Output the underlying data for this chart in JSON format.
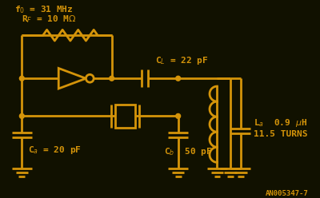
{
  "bg_color": "#111100",
  "line_color": "#d4940a",
  "text_color": "#d4940a",
  "lw": 2.0,
  "f0_label": "f₀ = 31 MHz",
  "rf_label": "Rⁱ = 10 MΩ",
  "cl_label": "Cₗ = 22 pF",
  "ca_label": "Cₐ = 20 pF",
  "cb_label": "Cᵇ  50 pF",
  "la_label": "Lₐ  0.9 μH",
  "turns_label": "11.5 TURNS",
  "note_label": "AN005347-7"
}
